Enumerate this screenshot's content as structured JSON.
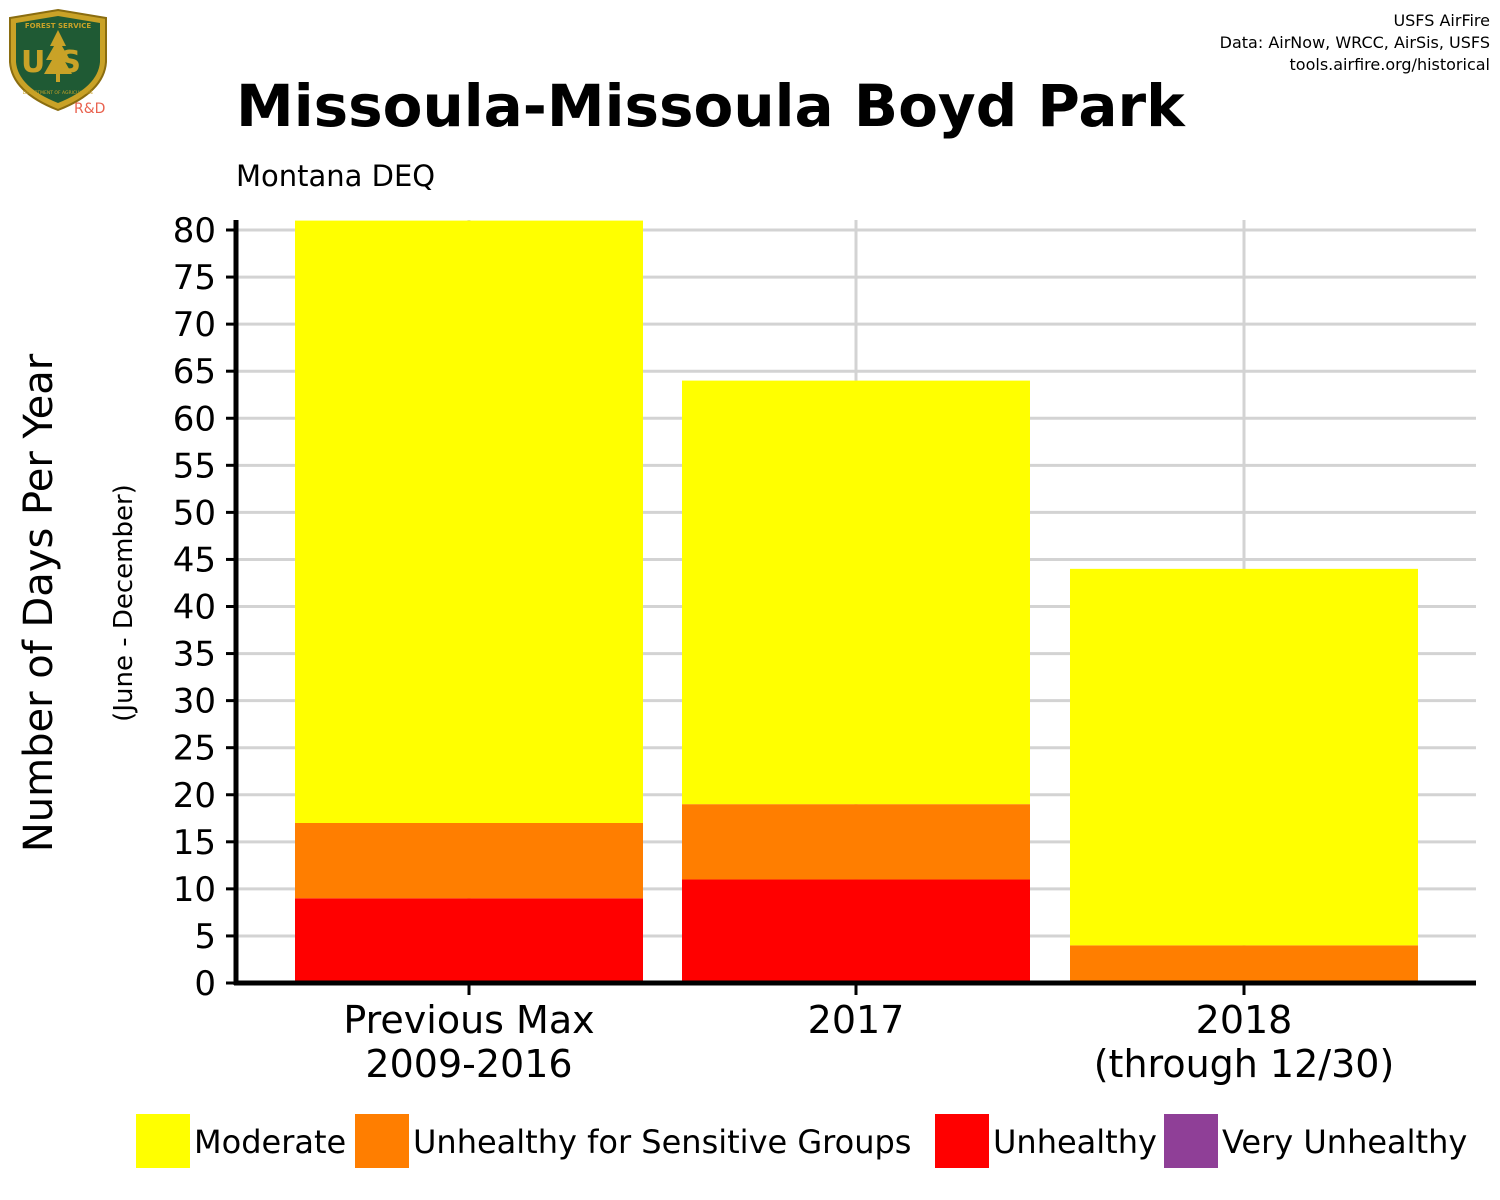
{
  "header": {
    "logo_text": "US",
    "logo_arc_top": "FOREST SERVICE",
    "logo_arc_bottom": "DEPARTMENT OF AGRICULTURE",
    "logo_sub": "R&D",
    "credit_lines": [
      "USFS AirFire",
      "Data: AirNow, WRCC, AirSis, USFS",
      "tools.airfire.org/historical"
    ]
  },
  "chart_data": {
    "type": "bar",
    "stacked": true,
    "title": "Missoula-Missoula Boyd Park",
    "subtitle": "Montana DEQ",
    "ylabel": "Number of Days Per Year",
    "ylabel_sub": "(June - December)",
    "xlabel": "",
    "ylim": [
      0,
      80
    ],
    "yticks": [
      0,
      5,
      10,
      15,
      20,
      25,
      30,
      35,
      40,
      45,
      50,
      55,
      60,
      65,
      70,
      75,
      80
    ],
    "grid": true,
    "legend_position": "bottom",
    "categories": [
      [
        "Previous Max",
        "2009-2016"
      ],
      [
        "2017"
      ],
      [
        "2018",
        "(through 12/30)"
      ]
    ],
    "series": [
      {
        "name": "Moderate",
        "color": "#FFFF00",
        "values": [
          64,
          45,
          40
        ]
      },
      {
        "name": "Unhealthy for Sensitive Groups",
        "color": "#FF7E00",
        "values": [
          8,
          8,
          4
        ]
      },
      {
        "name": "Unhealthy",
        "color": "#FF0000",
        "values": [
          9,
          11,
          0
        ]
      },
      {
        "name": "Very Unhealthy",
        "color": "#8F3F97",
        "values": [
          0,
          0,
          0
        ]
      }
    ]
  }
}
